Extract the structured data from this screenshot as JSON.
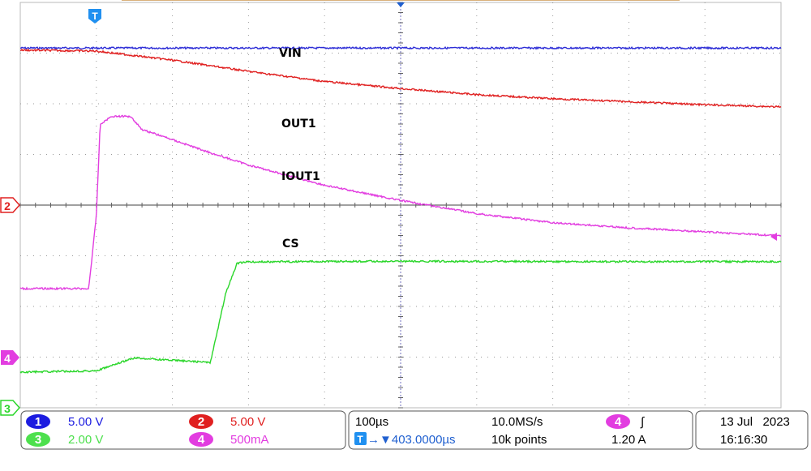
{
  "chart_data": {
    "type": "line",
    "x_unit": "µs",
    "xlim": [
      -56,
      944
    ],
    "series": [
      {
        "name": "VIN",
        "channel": 1,
        "color": "#2b2bd6",
        "x": [
          -56,
          944
        ],
        "y": [
          15.5,
          15.5
        ]
      },
      {
        "name": "OUT1",
        "channel": 2,
        "color": "#e02020",
        "x": [
          -56,
          44,
          144,
          244,
          344,
          444,
          544,
          644,
          744,
          844,
          944
        ],
        "y": [
          15.3,
          15.2,
          14.3,
          13.2,
          12.2,
          11.5,
          10.9,
          10.5,
          10.2,
          9.9,
          9.7
        ]
      },
      {
        "name": "IOUT1",
        "channel": 4,
        "color": "#e23de0",
        "x": [
          -56,
          34,
          44,
          49,
          64,
          89,
          104,
          144,
          194,
          244,
          344,
          444,
          544,
          644,
          744,
          844,
          944
        ],
        "y": [
          0.68,
          0.68,
          1.4,
          2.3,
          2.38,
          2.38,
          2.25,
          2.15,
          2.02,
          1.9,
          1.7,
          1.55,
          1.42,
          1.33,
          1.28,
          1.24,
          1.2
        ]
      },
      {
        "name": "CS",
        "channel": 3,
        "color": "#2ad62a",
        "x": [
          -56,
          44,
          94,
          194,
          214,
          229,
          244,
          344,
          544,
          744,
          944
        ],
        "y": [
          0.0,
          0.05,
          0.56,
          0.38,
          3.1,
          4.3,
          4.35,
          4.37,
          4.37,
          4.36,
          4.36
        ]
      }
    ]
  },
  "labels": {
    "vin": "VIN",
    "out1": "OUT1",
    "iout1": "IOUT1",
    "cs": "CS"
  },
  "markers": {
    "trigger_top": "T",
    "ch2": "2",
    "ch4": "4",
    "ch3": "3"
  },
  "readout": {
    "ch1": {
      "num": "1",
      "value": "5.00 V"
    },
    "ch2": {
      "num": "2",
      "value": "5.00 V"
    },
    "ch3": {
      "num": "3",
      "value": "2.00 V"
    },
    "ch4": {
      "num": "4",
      "value": "500mA"
    },
    "timebase": "100µs",
    "sample_rate": "10.0MS/s",
    "trigger_source": "4",
    "trigger_slope": "∫",
    "trigger_icon": "T",
    "trigger_position": "→▼403.0000µs",
    "record_length": "10k points",
    "trigger_level": "1.20 A",
    "date": "13 Jul   2023",
    "time": "16:16:30"
  },
  "colors": {
    "ch1": "#1c1ce0",
    "ch2": "#e02020",
    "ch3": "#2ad62a",
    "ch4": "#e23de0",
    "grid": "#8a8a8a",
    "frame": "#b8b8b8"
  }
}
